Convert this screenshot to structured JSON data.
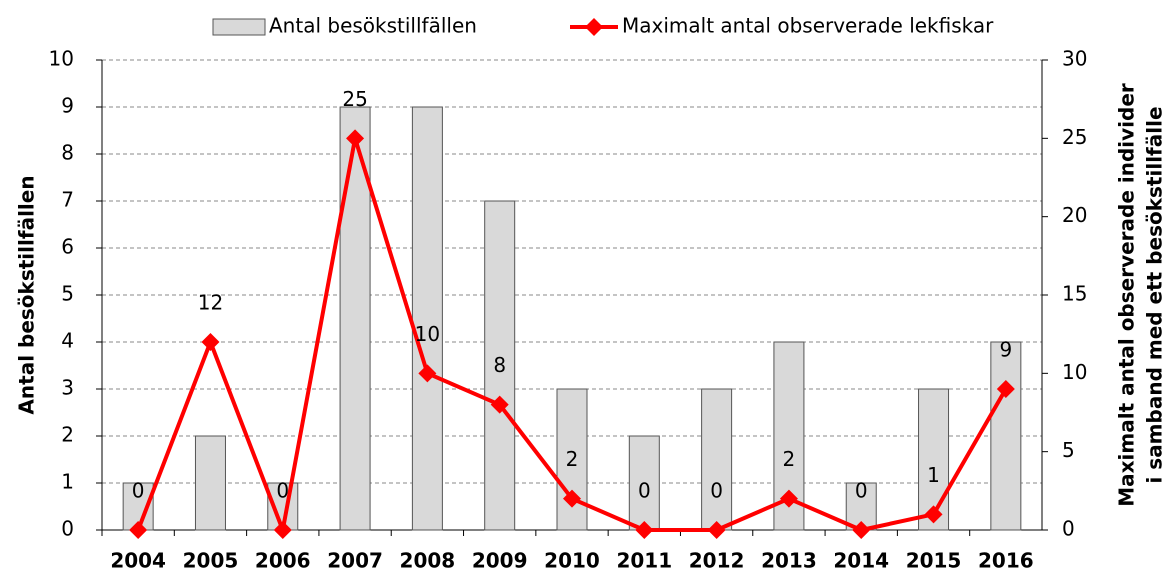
{
  "chart_data": {
    "type": "bar-line",
    "categories": [
      "2004",
      "2005",
      "2006",
      "2007",
      "2008",
      "2009",
      "2010",
      "2011",
      "2012",
      "2013",
      "2014",
      "2015",
      "2016"
    ],
    "series": [
      {
        "name": "Antal besökstillfällen",
        "type": "bar",
        "color": "#d9d9d9",
        "values": [
          1,
          2,
          1,
          9,
          9,
          7,
          3,
          2,
          3,
          4,
          1,
          3,
          4
        ]
      },
      {
        "name": "Maximalt antal observerade lekfiskar",
        "type": "line",
        "axis": "y2",
        "color": "#ff0000",
        "values": [
          0,
          12,
          0,
          25,
          10,
          8,
          2,
          0,
          0,
          2,
          0,
          1,
          9
        ]
      }
    ],
    "ylabel": "Antal besökstillfällen",
    "y2label": [
      "Maximalt antal observerade individer",
      "i samband med ett besökstillfälle"
    ],
    "ylim": [
      0,
      10
    ],
    "yticks": [
      0,
      1,
      2,
      3,
      4,
      5,
      6,
      7,
      8,
      9,
      10
    ],
    "y2lim": [
      0,
      30
    ],
    "y2ticks": [
      0,
      5,
      10,
      15,
      20,
      25,
      30
    ],
    "grid": true,
    "legend": "top"
  }
}
